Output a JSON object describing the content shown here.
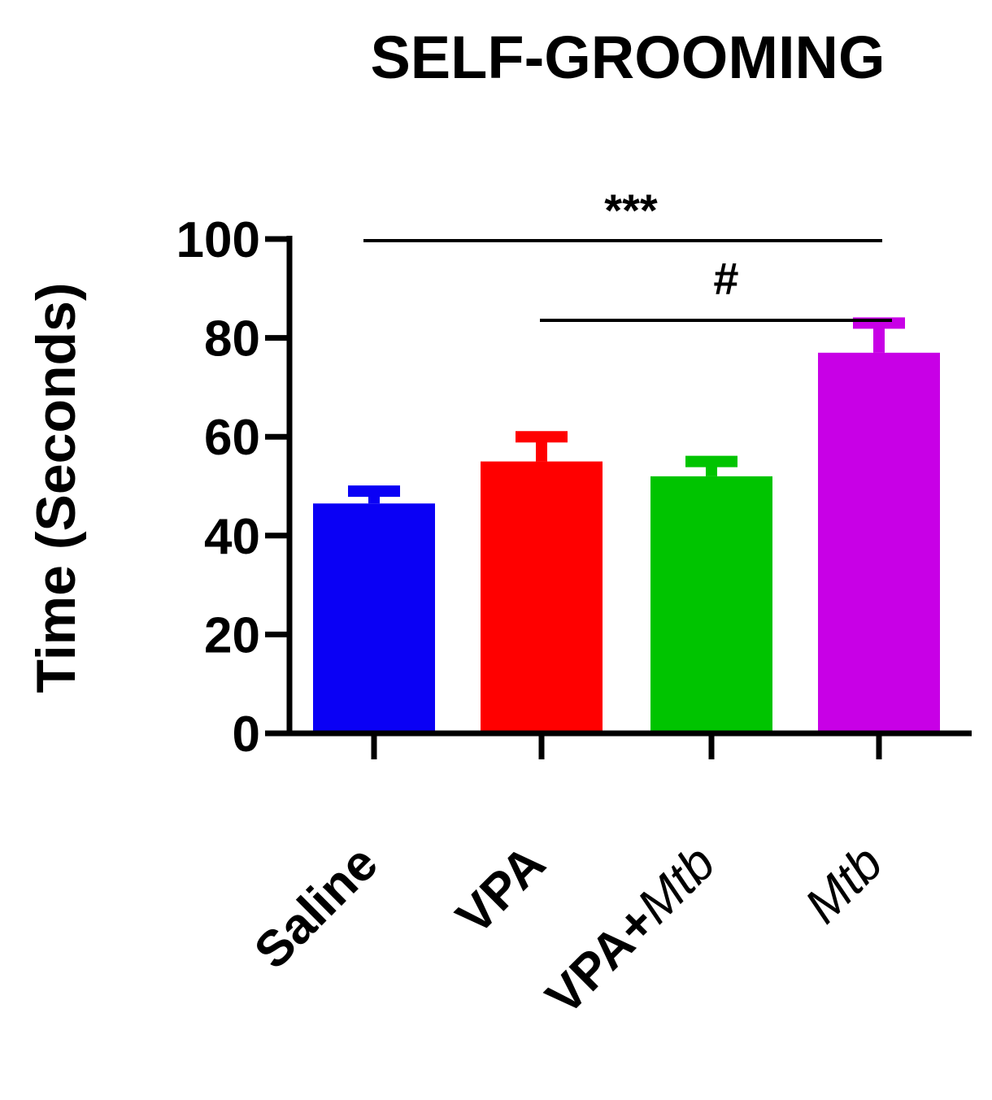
{
  "chart_data": {
    "type": "bar",
    "title": "SELF-GROOMING",
    "xlabel": "",
    "ylabel": "Time (Seconds)",
    "ylim": [
      0,
      100
    ],
    "yticks": [
      "0",
      "20",
      "40",
      "60",
      "80",
      "100"
    ],
    "categories": [
      {
        "plain": "Saline",
        "italic": ""
      },
      {
        "plain": "VPA",
        "italic": ""
      },
      {
        "plain": "VPA+",
        "italic": "Mtb"
      },
      {
        "plain": "",
        "italic": "Mtb"
      }
    ],
    "values": [
      46.5,
      55,
      52,
      77
    ],
    "errors": [
      2.5,
      5,
      3,
      6
    ],
    "colors": [
      "#0a00f5",
      "#ff0000",
      "#00c400",
      "#c800e6"
    ],
    "grid": false,
    "annotations": [
      {
        "label": "***",
        "from": "Saline",
        "to": "Mtb"
      },
      {
        "label": "#",
        "from": "VPA",
        "to": "Mtb"
      }
    ]
  }
}
